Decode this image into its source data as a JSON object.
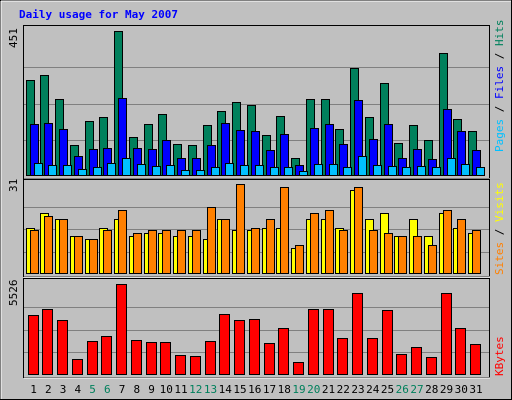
{
  "chart_data": {
    "type": "bar",
    "title": "Daily usage for May 2007",
    "categories": [
      "1",
      "2",
      "3",
      "4",
      "5",
      "6",
      "7",
      "8",
      "9",
      "10",
      "11",
      "12",
      "13",
      "14",
      "15",
      "16",
      "17",
      "18",
      "19",
      "20",
      "21",
      "22",
      "23",
      "24",
      "25",
      "26",
      "27",
      "28",
      "29",
      "30",
      "31"
    ],
    "weekend_days": [
      "5",
      "6",
      "12",
      "13",
      "19",
      "20",
      "26",
      "27"
    ],
    "colors": {
      "background": "#c0c0c0",
      "hits": "#00805c",
      "files": "#0000ff",
      "pages": "#00c0ff",
      "visits": "#ffff00",
      "sites": "#ff8000",
      "kbytes": "#ff0000",
      "weekday_label": "#000000",
      "weekend_label": "#00805c"
    },
    "panels": [
      {
        "name": "hits-files-pages",
        "ymax_label": "451",
        "ylim": [
          0,
          451
        ],
        "side_labels": [
          {
            "text": "Pages",
            "color": "#00c0ff"
          },
          {
            "text": " / ",
            "color": "#000000"
          },
          {
            "text": "Files",
            "color": "#0000ff"
          },
          {
            "text": " / ",
            "color": "#000000"
          },
          {
            "text": "Hits",
            "color": "#00805c"
          }
        ],
        "series": [
          {
            "name": "Hits",
            "color": "#00805c",
            "values": [
              299,
              315,
              239,
              95,
              170,
              183,
              451,
              120,
              162,
              194,
              98,
              96,
              158,
              202,
              229,
              222,
              128,
              188,
              57,
              241,
              240,
              147,
              336,
              185,
              290,
              102,
              158,
              113,
              382,
              177,
              140
            ]
          },
          {
            "name": "Files",
            "color": "#0000ff",
            "values": [
              162,
              166,
              147,
              62,
              83,
              88,
              242,
              87,
              85,
              111,
              57,
              55,
              97,
              166,
              144,
              139,
              80,
              131,
              34,
              150,
              161,
              101,
              236,
              116,
              162,
              57,
              84,
              53,
              208,
              141,
              80
            ]
          },
          {
            "name": "Pages",
            "color": "#00c0ff",
            "values": [
              41,
              35,
              33,
              22,
              29,
              41,
              55,
              36,
              31,
              35,
              18,
              20,
              27,
              41,
              34,
              34,
              28,
              28,
              14,
              36,
              36,
              28,
              63,
              35,
              31,
              27,
              32,
              27,
              57,
              38,
              28
            ]
          }
        ]
      },
      {
        "name": "visits-sites",
        "ymax_label": "31",
        "ylim": [
          0,
          31
        ],
        "side_labels": [
          {
            "text": "Sites",
            "color": "#ff8000"
          },
          {
            "text": " / ",
            "color": "#000000"
          },
          {
            "text": "Visits",
            "color": "#ffff00"
          }
        ],
        "series": [
          {
            "name": "Visits",
            "color": "#ffff00",
            "values": [
              16,
              21,
              19,
              13,
              12,
              16,
              19,
              13,
              14,
              14,
              13,
              13,
              12,
              19,
              15,
              15,
              16,
              16,
              9,
              19,
              19,
              16,
              29,
              19,
              21,
              13,
              19,
              13,
              21,
              16,
              14
            ]
          },
          {
            "name": "Sites",
            "color": "#ff8000",
            "values": [
              15,
              20,
              19,
              13,
              12,
              15,
              22,
              14,
              15,
              15,
              15,
              15,
              23,
              19,
              31,
              16,
              19,
              30,
              10,
              21,
              22,
              15,
              30,
              15,
              14,
              13,
              13,
              10,
              22,
              19,
              15
            ]
          }
        ]
      },
      {
        "name": "kbytes",
        "ymax_label": "5526",
        "ylim": [
          0,
          5526
        ],
        "side_labels": [
          {
            "text": "KBytes",
            "color": "#ff0000"
          }
        ],
        "series": [
          {
            "name": "KBytes",
            "color": "#ff0000",
            "values": [
              3624,
              3979,
              3346,
              986,
              2049,
              2378,
              5526,
              2127,
              1985,
              2007,
              1189,
              1172,
              2083,
              3725,
              3327,
              3380,
              1947,
              2856,
              762,
              4004,
              4037,
              2218,
              4977,
              2265,
              3932,
              1259,
              1716,
              1110,
              5003,
              2875,
              1875
            ]
          }
        ]
      }
    ]
  }
}
